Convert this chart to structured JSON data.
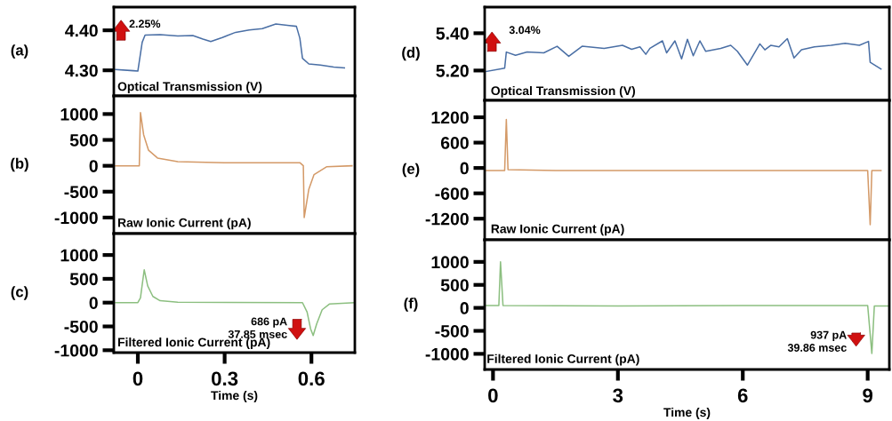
{
  "chart_data": [
    {
      "type": "line",
      "title": "(a)",
      "ylabel": "Optical Transmission (V)",
      "annotations": [
        "2.25%"
      ],
      "tick_labels": "y",
      "xlim": [
        -0.083,
        0.75
      ],
      "ylim": [
        4.236,
        4.458
      ],
      "yticks": [
        {
          "value": 4.3,
          "label": "4.30"
        },
        {
          "value": 4.4,
          "label": "4.40"
        }
      ],
      "series": [
        {
          "color": "#4a6fa5",
          "x": [
            -0.077,
            -0.015,
            0,
            0.015,
            0.025,
            0.077,
            0.138,
            0.19,
            0.225,
            0.252,
            0.292,
            0.338,
            0.385,
            0.43,
            0.477,
            0.523,
            0.548,
            0.56,
            0.569,
            0.591,
            0.631,
            0.677,
            0.714
          ],
          "values": [
            4.302,
            4.299,
            4.298,
            4.37,
            4.388,
            4.389,
            4.386,
            4.387,
            4.378,
            4.372,
            4.382,
            4.395,
            4.401,
            4.404,
            4.416,
            4.412,
            4.41,
            4.38,
            4.33,
            4.316,
            4.313,
            4.308,
            4.306
          ]
        }
      ]
    },
    {
      "type": "line",
      "title": "(b)",
      "ylabel": "Raw Ionic Current (pA)",
      "tick_labels": "y",
      "xlim": [
        -0.083,
        0.75
      ],
      "ylim": [
        -1310,
        1350
      ],
      "yticks": [
        -1000,
        -500,
        0,
        500,
        1000
      ],
      "series": [
        {
          "color": "#d49a68",
          "x": [
            -0.077,
            0,
            0.005,
            0.009,
            0.02,
            0.037,
            0.068,
            0.138,
            0.3,
            0.45,
            0.56,
            0.572,
            0.575,
            0.591,
            0.609,
            0.652,
            0.74
          ],
          "values": [
            0,
            0,
            0,
            1030,
            600,
            300,
            150,
            80,
            60,
            60,
            60,
            0,
            -1000,
            -450,
            -170,
            -20,
            0
          ]
        }
      ]
    },
    {
      "type": "line",
      "title": "(c)",
      "ylabel": "Filtered Ionic Current (pA)",
      "xlabel": "Time (s)",
      "annotations": [
        "686 pA\n37.85 msec"
      ],
      "xlim": [
        -0.083,
        0.75
      ],
      "xticks": [
        0,
        0.3,
        0.6
      ],
      "ylim": [
        -1050,
        1450
      ],
      "yticks": [
        -1000,
        -500,
        0,
        500,
        1000
      ],
      "series": [
        {
          "color": "#8cbf80",
          "x": [
            -0.077,
            0,
            0.009,
            0.022,
            0.034,
            0.052,
            0.077,
            0.138,
            0.569,
            0.585,
            0.597,
            0.606,
            0.618,
            0.637,
            0.662,
            0.748
          ],
          "values": [
            0,
            0,
            100,
            690,
            350,
            130,
            40,
            10,
            0,
            -200,
            -550,
            -690,
            -450,
            -150,
            -30,
            0
          ]
        }
      ]
    },
    {
      "type": "line",
      "title": "(d)",
      "ylabel": "Optical Transmission (V)",
      "annotations": [
        "3.04%"
      ],
      "tick_labels": "y",
      "xlim": [
        -0.2,
        9.52
      ],
      "ylim": [
        5.04,
        5.54
      ],
      "yticks": [
        {
          "value": 5.2,
          "label": "5.20"
        },
        {
          "value": 5.4,
          "label": "5.40"
        }
      ],
      "series": [
        {
          "color": "#4a6fa5",
          "x": [
            -0.16,
            0.28,
            0.32,
            0.54,
            0.82,
            1.22,
            1.54,
            1.82,
            2.14,
            2.67,
            3.11,
            3.33,
            3.53,
            3.67,
            3.77,
            4.07,
            4.17,
            4.37,
            4.53,
            4.67,
            4.81,
            4.97,
            5.11,
            5.47,
            5.71,
            5.87,
            6.11,
            6.41,
            6.53,
            6.67,
            6.87,
            7.07,
            7.23,
            7.41,
            7.72,
            8.12,
            8.46,
            8.8,
            9.02,
            9.06,
            9.32
          ],
          "values": [
            5.195,
            5.213,
            5.299,
            5.282,
            5.299,
            5.295,
            5.33,
            5.276,
            5.33,
            5.319,
            5.335,
            5.314,
            5.327,
            5.287,
            5.319,
            5.359,
            5.295,
            5.359,
            5.263,
            5.367,
            5.279,
            5.359,
            5.303,
            5.319,
            5.335,
            5.303,
            5.229,
            5.343,
            5.311,
            5.335,
            5.327,
            5.371,
            5.267,
            5.311,
            5.327,
            5.335,
            5.346,
            5.335,
            5.356,
            5.244,
            5.208
          ]
        }
      ]
    },
    {
      "type": "line",
      "title": "(e)",
      "ylabel": "Raw Ionic Current (pA)",
      "tick_labels": "y",
      "xlim": [
        -0.2,
        9.52
      ],
      "ylim": [
        -1700,
        1600
      ],
      "yticks": [
        -1200,
        -600,
        0,
        600,
        1200
      ],
      "series": [
        {
          "color": "#d49a68",
          "x": [
            -0.16,
            0.28,
            0.32,
            0.36,
            1.5,
            3,
            4.8,
            6,
            7.5,
            9.0,
            9.06,
            9.1,
            9.32
          ],
          "values": [
            -60,
            -60,
            1150,
            -40,
            -60,
            -60,
            -60,
            -60,
            -60,
            -60,
            -1340,
            -60,
            -60
          ]
        }
      ]
    },
    {
      "type": "line",
      "title": "(f)",
      "ylabel": "Filtered Ionic Current (pA)",
      "xlabel": "Time (s)",
      "annotations": [
        "937 pA\n39.86 msec"
      ],
      "xlim": [
        -0.2,
        9.52
      ],
      "xticks": [
        0,
        3,
        6,
        9
      ],
      "ylim": [
        -1340,
        1480
      ],
      "yticks": [
        -1000,
        -500,
        0,
        500,
        1000
      ],
      "series": [
        {
          "color": "#8cbf80",
          "x": [
            -0.16,
            0.14,
            0.18,
            0.24,
            3,
            6,
            9.0,
            9.1,
            9.16,
            9.5
          ],
          "values": [
            50,
            50,
            1000,
            50,
            40,
            50,
            50,
            -990,
            40,
            40
          ]
        }
      ]
    }
  ]
}
